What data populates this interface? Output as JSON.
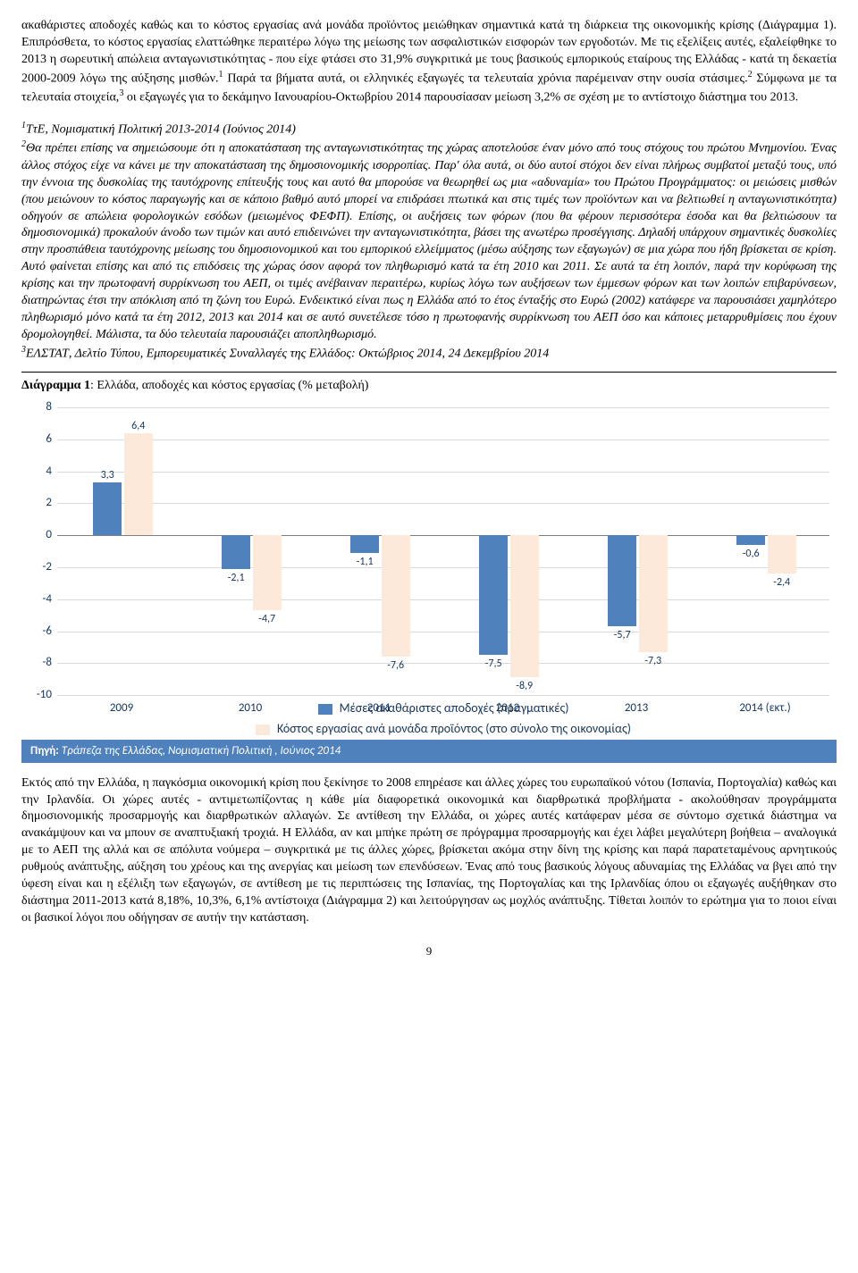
{
  "para1": "ακαθάριστες αποδοχές καθώς και το κόστος εργασίας ανά μονάδα προϊόντος μειώθηκαν σημαντικά κατά τη διάρκεια της οικονομικής κρίσης (Διάγραμμα 1). Επιπρόσθετα, το κόστος εργασίας ελαττώθηκε περαιτέρω λόγω της μείωσης των ασφαλιστικών εισφορών των εργοδοτών. Με τις εξελίξεις αυτές, εξαλείφθηκε το 2013 η σωρευτική απώλεια ανταγωνιστικότητας - που είχε φτάσει στο 31,9% συγκριτικά με τους βασικούς εμπορικούς εταίρους της Ελλάδας - κατά τη δεκαετία 2000-2009 λόγω της αύξησης μισθών.",
  "para1b": " Παρά τα βήματα αυτά, οι ελληνικές εξαγωγές τα τελευταία χρόνια παρέμειναν στην ουσία στάσιμες.",
  "para1c": " Σύμφωνα με τα τελευταία στοιχεία,",
  "para1d": " οι εξαγωγές για το δεκάμηνο Ιανουαρίου-Οκτωβρίου 2014 παρουσίασαν μείωση 3,2% σε σχέση με το αντίστοιχο διάστημα του 2013.",
  "fn1_marker": "1",
  "fn1": "ΤτΕ, Νομισματική Πολιτική 2013-2014 (Ιούνιος 2014)",
  "fn2_marker": "2",
  "fn2": "Θα πρέπει επίσης να σημειώσουμε ότι η αποκατάσταση της ανταγωνιστικότητας της χώρας αποτελούσε έναν μόνο από τους στόχους του πρώτου Μνημονίου. Ένας  άλλος στόχος είχε να κάνει με την αποκατάσταση της δημοσιονομικής ισορροπίας. Παρ' όλα αυτά, οι δύο αυτοί στόχοι δεν είναι πλήρως συμβατοί μεταξύ τους, υπό την έννοια της δυσκολίας της ταυτόχρονης επίτευξής τους και αυτό θα μπορούσε να θεωρηθεί ως μια «αδυναμία» του Πρώτου Προγράμματος: οι μειώσεις μισθών (που μειώνουν το κόστος παραγωγής και σε κάποιο βαθμό αυτό μπορεί να επιδράσει πτωτικά και στις τιμές των προϊόντων και να βελτιωθεί η ανταγωνιστικότητα) οδηγούν σε απώλεια φορολογικών εσόδων (μειωμένος ΦΕΦΠ). Επίσης, οι αυξήσεις των φόρων (που θα φέρουν περισσότερα έσοδα και θα βελτιώσουν τα δημοσιονομικά) προκαλούν άνοδο των τιμών και αυτό επιδεινώνει την ανταγωνιστικότητα, βάσει της ανωτέρω προσέγγισης.  Δηλαδή υπάρχουν σημαντικές δυσκολίες στην προσπάθεια ταυτόχρονης μείωσης του δημοσιονομικού και του εμπορικού ελλείμματος (μέσω αύξησης των εξαγωγών) σε μια χώρα που ήδη βρίσκεται σε κρίση. Αυτό φαίνεται επίσης και από τις επιδόσεις της χώρας όσον αφορά τον πληθωρισμό κατά τα έτη 2010 και 2011. Σε αυτά τα έτη λοιπόν, παρά την κορύφωση της κρίσης και την πρωτοφανή συρρίκνωση του ΑΕΠ, οι τιμές ανέβαιναν περαιτέρω, κυρίως λόγω των αυξήσεων των έμμεσων φόρων και των λοιπών επιβαρύνσεων, διατηρώντας έτσι την απόκλιση από τη ζώνη του Ευρώ. Ενδεικτικό είναι πως η Ελλάδα από το έτος ένταξής στο Ευρώ (2002) κατάφερε να παρουσιάσει χαμηλότερο πληθωρισμό μόνο κατά τα έτη 2012, 2013 και 2014 και σε αυτό συνετέλεσε τόσο η πρωτοφανής συρρίκνωση του ΑΕΠ όσο και κάποιες μεταρρυθμίσεις που έχουν δρομολογηθεί. Μάλιστα, τα δύο τελευταία παρουσιάζει αποπληθωρισμό.",
  "fn3_marker": "3",
  "fn3": "ΕΛΣΤΑΤ, Δελτίο Τύπου, Εμπορευματικές Συναλλαγές της Ελλάδος: Οκτώβριος 2014, 24 Δεκεμβρίου 2014",
  "chart_title_bold": "Διάγραμμα 1",
  "chart_title_rest": ": Ελλάδα, αποδοχές και κόστος εργασίας (% μεταβολή)",
  "chart": {
    "ymin": -10,
    "ymax": 8,
    "ytick_step": 2,
    "categories": [
      "2009",
      "2010",
      "2011",
      "2012",
      "2013",
      "2014 (εκτ.)"
    ],
    "series_a_label": "Μέσες ακαθάριστες αποδοχές (πραγματικές)",
    "series_b_label": "Κόστος εργασίας ανά μονάδα προϊόντος (στο σύνολο της οικονομίας)",
    "series_a_color": "#4f81bd",
    "series_b_color": "#fde9d9",
    "a": [
      3.3,
      -2.1,
      -1.1,
      -7.5,
      -5.7,
      -0.6
    ],
    "b": [
      6.4,
      -4.7,
      -7.6,
      -8.9,
      -7.3,
      -2.4
    ]
  },
  "source_label": "Πηγή:",
  "source_text": " Τράπεζα της Ελλάδας, Νομισματική Πολιτική , Ιούνιος 2014",
  "para2a": "Εκτός από την Ελλάδα, η παγκόσμια οικονομική κρίση που ξεκίνησε το 2008 επηρέασε και άλλες χώρες του ευρωπαϊκού νότου (Ισπανία, Πορτογαλία) καθώς και την Ιρλανδία. Οι χώρες αυτές - αντιμετωπίζοντας η κάθε μία διαφορετικά οικονομικά και διαρθρωτικά προβλήματα - ακολούθησαν προγράμματα δημοσιονομικής προσαρμογής και διαρθρωτικών αλλαγών. Σε αντίθεση την Ελλάδα, οι χώρες αυτές κατάφεραν μέσα σε σύντομο σχετικά διάστημα να ανακάμψουν και να μπουν σε αναπτυξιακή τροχιά. Η Ελλάδα, αν και μπήκε πρώτη σε πρόγραμμα προσαρμογής και έχει λάβει μεγαλύτερη βοήθεια – αναλογικά με το ΑΕΠ της αλλά και σε απόλυτα νούμερα – συγκριτικά με τις άλλες χώρες, βρίσκεται ακόμα στην δίνη της κρίσης και παρά παρατεταμένους αρνητικούς ρυθμούς ανάπτυξης, αύξηση του χρέους και της ανεργίας και μείωση των επενδύσεων. Ένας από τους βασικούς λόγους αδυναμίας της Ελλάδας να βγει από την ύφεση είναι και η εξέλιξη των εξαγωγών, σε αντίθεση με τις περιπτώσεις της Ισπανίας, της Πορτογαλίας και της Ιρλανδίας όπου οι εξαγωγές αυξήθηκαν στο διάστημα 2011-2013 κατά 8,18%, 10,3%, 6,1% αντίστοιχα (Διάγραμμα 2) και λειτούργησαν ως μοχλός ανάπτυξης. Τίθεται λοιπόν το ερώτημα για το ποιοι είναι οι βασικοί λόγοι που οδήγησαν σε αυτήν την κατάσταση.",
  "page_number": "9"
}
